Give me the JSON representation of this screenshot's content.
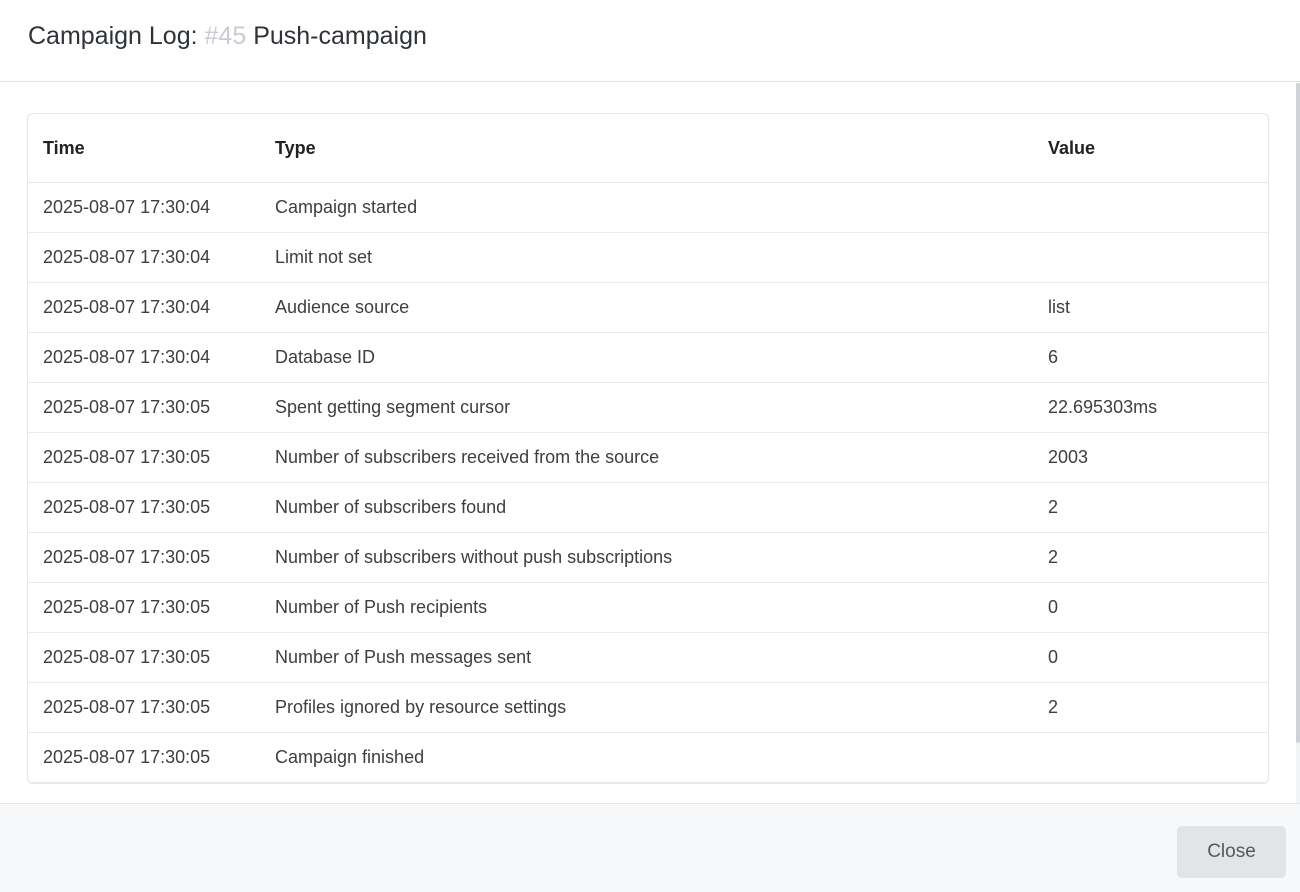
{
  "header": {
    "title_prefix": "Campaign Log:",
    "campaign_id": "#45",
    "campaign_name": "Push-campaign"
  },
  "table": {
    "columns": {
      "time": "Time",
      "type": "Type",
      "value": "Value"
    },
    "rows": [
      {
        "time": "2025-08-07 17:30:04",
        "type": "Campaign started",
        "value": ""
      },
      {
        "time": "2025-08-07 17:30:04",
        "type": "Limit not set",
        "value": ""
      },
      {
        "time": "2025-08-07 17:30:04",
        "type": "Audience source",
        "value": "list"
      },
      {
        "time": "2025-08-07 17:30:04",
        "type": "Database ID",
        "value": "6"
      },
      {
        "time": "2025-08-07 17:30:05",
        "type": "Spent getting segment cursor",
        "value": "22.695303ms"
      },
      {
        "time": "2025-08-07 17:30:05",
        "type": "Number of subscribers received from the source",
        "value": "2003"
      },
      {
        "time": "2025-08-07 17:30:05",
        "type": "Number of subscribers found",
        "value": "2"
      },
      {
        "time": "2025-08-07 17:30:05",
        "type": "Number of subscribers without push subscriptions",
        "value": "2"
      },
      {
        "time": "2025-08-07 17:30:05",
        "type": "Number of Push recipients",
        "value": "0"
      },
      {
        "time": "2025-08-07 17:30:05",
        "type": "Number of Push messages sent",
        "value": "0"
      },
      {
        "time": "2025-08-07 17:30:05",
        "type": "Profiles ignored by resource settings",
        "value": "2"
      },
      {
        "time": "2025-08-07 17:30:05",
        "type": "Campaign finished",
        "value": ""
      }
    ]
  },
  "footer": {
    "close_label": "Close"
  }
}
